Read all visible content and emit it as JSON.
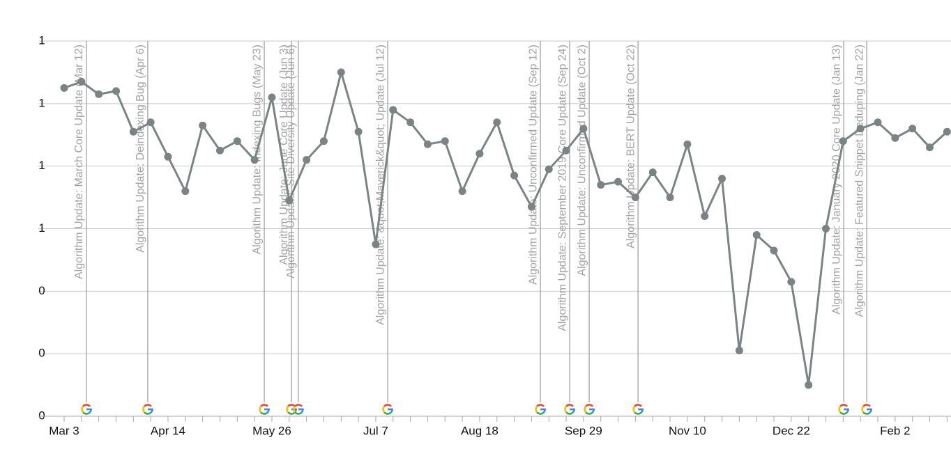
{
  "chart_data": {
    "type": "line",
    "categories": [
      "Mar 3",
      null,
      null,
      null,
      null,
      null,
      "Apr 14",
      null,
      null,
      null,
      null,
      null,
      "May 26",
      null,
      null,
      null,
      null,
      null,
      "Jul 7",
      null,
      null,
      null,
      null,
      null,
      "Aug 18",
      null,
      null,
      null,
      null,
      null,
      "Sep 29",
      null,
      null,
      null,
      null,
      null,
      "Nov 10",
      null,
      null,
      null,
      null,
      null,
      "Dec 22",
      null,
      null,
      null,
      null,
      null,
      "Feb 2",
      null,
      null,
      null
    ],
    "series": [
      {
        "color": "#7b8384",
        "values": [
          1.05,
          1.07,
          1.03,
          1.04,
          0.91,
          0.94,
          0.83,
          0.72,
          0.93,
          0.85,
          0.88,
          0.82,
          1.02,
          0.69,
          0.82,
          0.88,
          1.1,
          0.91,
          0.55,
          0.98,
          0.94,
          0.87,
          0.88,
          0.72,
          0.84,
          0.94,
          0.77,
          0.67,
          0.79,
          0.85,
          0.92,
          0.74,
          0.75,
          0.7,
          0.78,
          0.7,
          0.87,
          0.64,
          0.76,
          0.21,
          0.58,
          0.53,
          0.43,
          0.1,
          0.6,
          0.88,
          0.92,
          0.94,
          0.89,
          0.92,
          0.86,
          0.91
        ]
      }
    ],
    "ylim": [
      0,
      1.2
    ],
    "yticks": [
      {
        "value": 0,
        "label": "0"
      },
      {
        "value": 0.2,
        "label": "0"
      },
      {
        "value": 0.4,
        "label": "0"
      },
      {
        "value": 0.6,
        "label": "1"
      },
      {
        "value": 0.8,
        "label": "1"
      },
      {
        "value": 1.0,
        "label": "1"
      },
      {
        "value": 1.2,
        "label": "1"
      }
    ],
    "grid": true,
    "annotations": [
      {
        "x": 1.29,
        "label": "Algorithm Update: March Core Update (Mar 12)"
      },
      {
        "x": 4.83,
        "label": "Algorithm Update: Deindexing Bug (Apr 6)"
      },
      {
        "x": 11.56,
        "label": "Algorithm Update: Indexing Bugs (May 23)"
      },
      {
        "x": 13.13,
        "label": "Algorithm Update: June Core Update (Jun 3)"
      },
      {
        "x": 13.53,
        "label": "Algorithm Update: Site Diversity Update (Jun 6)"
      },
      {
        "x": 18.69,
        "label": "Algorithm Update: &quot;Maverick&quot; Update (Jul 12)"
      },
      {
        "x": 27.51,
        "label": "Algorithm Update: Unconfirmed Update (Sep 12)"
      },
      {
        "x": 29.2,
        "label": "Algorithm Update: September 2019 Core Update (Sep 24)"
      },
      {
        "x": 30.33,
        "label": "Algorithm Update: Unconfirmed Update (Oct 2)"
      },
      {
        "x": 33.15,
        "label": "Algorithm Update: BERT Update (Oct 22)"
      },
      {
        "x": 45.03,
        "label": "Algorithm Update: January 2020 Core Update (Jan 13)"
      },
      {
        "x": 46.36,
        "label": "Algorithm Update: Featured Snippet Deduping (Jan 22)"
      }
    ]
  }
}
